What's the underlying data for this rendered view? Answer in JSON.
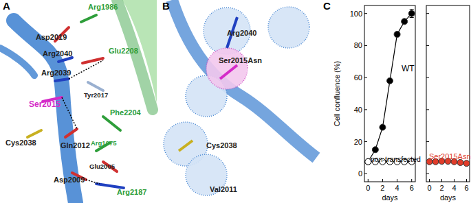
{
  "panels": [
    {
      "letter": "A",
      "labels": [
        {
          "text": "Arg1986",
          "color": "#2e9e3a"
        },
        {
          "text": "Asp2019",
          "color": "#222222"
        },
        {
          "text": "Arg2040",
          "color": "#222222"
        },
        {
          "text": "Glu2208",
          "color": "#2e9e3a"
        },
        {
          "text": "Arg2039",
          "color": "#222222"
        },
        {
          "text": "Tyr2017",
          "color": "#222222"
        },
        {
          "text": "Ser2015",
          "color": "#d42ac8"
        },
        {
          "text": "Phe2204",
          "color": "#2e9e3a"
        },
        {
          "text": "Cys2038",
          "color": "#222222"
        },
        {
          "text": "Gln2012",
          "color": "#222222"
        },
        {
          "text": "Arg1975",
          "color": "#2e9e3a"
        },
        {
          "text": "Glu2005",
          "color": "#222222"
        },
        {
          "text": "Asp2009",
          "color": "#222222"
        },
        {
          "text": "Arg2187",
          "color": "#2e9e3a"
        }
      ]
    },
    {
      "letter": "B",
      "labels": [
        {
          "text": "Arg2040",
          "color": "#222222"
        },
        {
          "text": "Ser2015Asn",
          "color": "#222222"
        },
        {
          "text": "Cys2038",
          "color": "#222222"
        },
        {
          "text": "Val2011",
          "color": "#222222"
        }
      ]
    },
    {
      "letter": "C"
    }
  ],
  "chart_data": [
    {
      "type": "line",
      "x": [
        0,
        1,
        2,
        3,
        4,
        5,
        6
      ],
      "xlim": [
        -0.5,
        6.5
      ],
      "ylim": [
        -5,
        105
      ],
      "xticks": [
        0,
        2,
        4,
        6
      ],
      "yticks": [
        0,
        20,
        40,
        60,
        80,
        100
      ],
      "x_label": "days",
      "y_label": "Cell confluence (%)",
      "series": [
        {
          "name": "WT",
          "color": "#000000",
          "marker": "circle",
          "line_style": "solid",
          "values": [
            7.5,
            15,
            29,
            58,
            87,
            95,
            100
          ],
          "errors": [
            null,
            null,
            null,
            null,
            null,
            null,
            2.5
          ]
        },
        {
          "name": "non-transfected",
          "color": "#000000",
          "marker": "open-circle",
          "line_style": "solid",
          "values": [
            7.5,
            7.5,
            7.5,
            7.5,
            7.5,
            7.5,
            7.5
          ]
        }
      ]
    },
    {
      "type": "line",
      "x": [
        0,
        1,
        2,
        3,
        4,
        5,
        6
      ],
      "xlim": [
        -0.5,
        6.5
      ],
      "ylim": [
        -5,
        105
      ],
      "xticks": [
        0,
        2,
        4,
        6
      ],
      "yticks": [
        0,
        20,
        40,
        60,
        80,
        100
      ],
      "x_label": "days",
      "tick_labels": "x",
      "series": [
        {
          "name": "Ser2015Asn",
          "color": "#e03c2a",
          "marker": "circle",
          "line_style": "solid",
          "values": [
            7.5,
            7.5,
            7.8,
            7.8,
            7.5,
            7,
            6.5
          ]
        }
      ]
    }
  ]
}
